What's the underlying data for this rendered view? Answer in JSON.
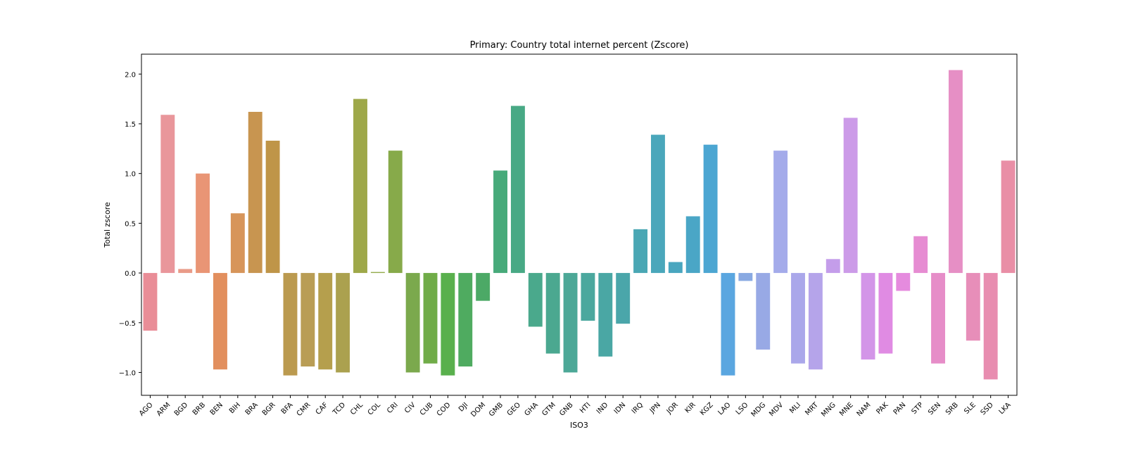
{
  "chart_data": {
    "type": "bar",
    "title": "Primary: Country total internet percent (Zscore)",
    "xlabel": "ISO3",
    "ylabel": "Total zscore",
    "ylim": [
      -1.23,
      2.2
    ],
    "yticks": [
      -1.0,
      -0.5,
      0.0,
      0.5,
      1.0,
      1.5,
      2.0
    ],
    "ytick_labels": [
      "−1.0",
      "−0.5",
      "0.0",
      "0.5",
      "1.0",
      "1.5",
      "2.0"
    ],
    "grid": false,
    "legend": "none",
    "categories": [
      "AGO",
      "ARM",
      "BGD",
      "BRB",
      "BEN",
      "BIH",
      "BRA",
      "BGR",
      "BFA",
      "CMR",
      "CAF",
      "TCD",
      "CHL",
      "COL",
      "CRI",
      "CIV",
      "CUB",
      "COD",
      "DJI",
      "DOM",
      "GMB",
      "GEO",
      "GHA",
      "GTM",
      "GNB",
      "HTI",
      "IND",
      "IDN",
      "IRQ",
      "JPN",
      "JOR",
      "KIR",
      "KGZ",
      "LAO",
      "LSO",
      "MDG",
      "MDV",
      "MLI",
      "MRT",
      "MNG",
      "MNE",
      "NAM",
      "PAK",
      "PAN",
      "STP",
      "SEN",
      "SRB",
      "SLE",
      "SSD",
      "LKA"
    ],
    "values": [
      -0.58,
      1.59,
      0.04,
      1.0,
      -0.97,
      0.6,
      1.62,
      1.33,
      -1.03,
      -0.94,
      -0.97,
      -1.0,
      1.75,
      0.01,
      1.23,
      -1.0,
      -0.91,
      -1.03,
      -0.94,
      -0.28,
      1.03,
      1.68,
      -0.54,
      -0.81,
      -1.0,
      -0.48,
      -0.84,
      -0.51,
      0.44,
      1.39,
      0.11,
      0.57,
      1.29,
      -1.03,
      -0.08,
      -0.77,
      1.23,
      -0.91,
      -0.97,
      0.14,
      1.56,
      -0.87,
      -0.81,
      -0.18,
      0.37,
      -0.91,
      2.04,
      -0.68,
      -1.07,
      1.13
    ],
    "colors": [
      "#e98d97",
      "#e9969b",
      "#e99b88",
      "#e99575",
      "#e28f5e",
      "#d7955a",
      "#c89550",
      "#bf9548",
      "#bb9a4f",
      "#b99d55",
      "#b59f4d",
      "#aba14f",
      "#9ea849",
      "#93ab4b",
      "#87aa4a",
      "#7ba94d",
      "#70ac48",
      "#59b04d",
      "#4fab60",
      "#4ca966",
      "#47aa7a",
      "#48a985",
      "#4aa98c",
      "#4ba890",
      "#4ca897",
      "#4ba89e",
      "#4aa7a4",
      "#4aa6aa",
      "#4aa7b4",
      "#4aa7bb",
      "#49a6bf",
      "#4aa6c6",
      "#4ca6d2",
      "#5aa6e0",
      "#89a9e2",
      "#98a9e5",
      "#a4abea",
      "#aaa7ea",
      "#b5a4ea",
      "#c49dea",
      "#cc9be8",
      "#d395e8",
      "#e08be3",
      "#e58bde",
      "#e68cd2",
      "#e68dc8",
      "#e68fc5",
      "#e78eb9",
      "#e88db0",
      "#e98ea6"
    ]
  }
}
